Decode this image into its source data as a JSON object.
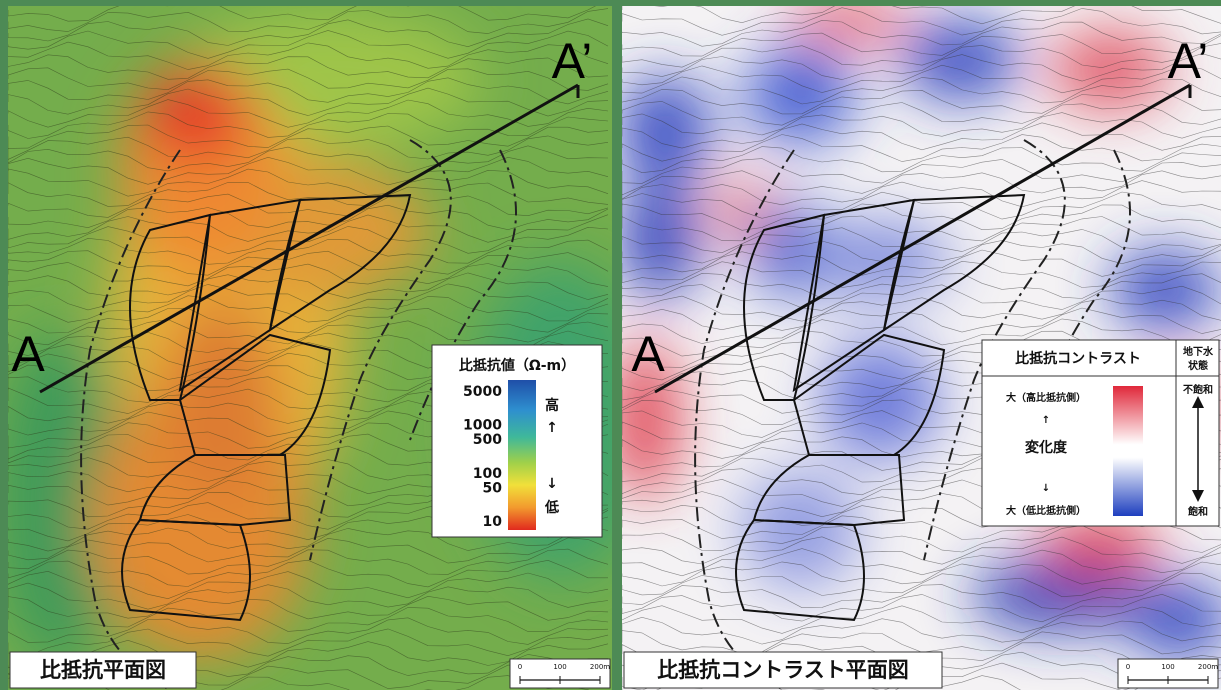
{
  "left_panel": {
    "caption": "比抵抗平面図",
    "section_start": "A",
    "section_end": "A’",
    "legend": {
      "title": "比抵抗値（Ω-m）",
      "ticks": [
        5000,
        1000,
        500,
        100,
        50,
        10
      ],
      "high": "高",
      "up_arrow": "↑",
      "down_arrow": "↓",
      "low": "低"
    },
    "scale": {
      "ticks": [
        "0",
        "100",
        "200m"
      ]
    }
  },
  "right_panel": {
    "caption": "比抵抗コントラスト平面図",
    "section_start": "A",
    "section_end": "A’",
    "legend": {
      "title": "比抵抗コントラスト",
      "groundwater_lines": [
        "地下水",
        "状態"
      ],
      "high_side": "大（高比抵抗側）",
      "up_arrow": "↑",
      "middle": "変化度",
      "down_arrow": "↓",
      "low_side": "大（低比抵抗側）",
      "unsaturated": "不飽和",
      "saturated": "飽和"
    },
    "scale": {
      "ticks": [
        "0",
        "100",
        "200m"
      ]
    }
  }
}
